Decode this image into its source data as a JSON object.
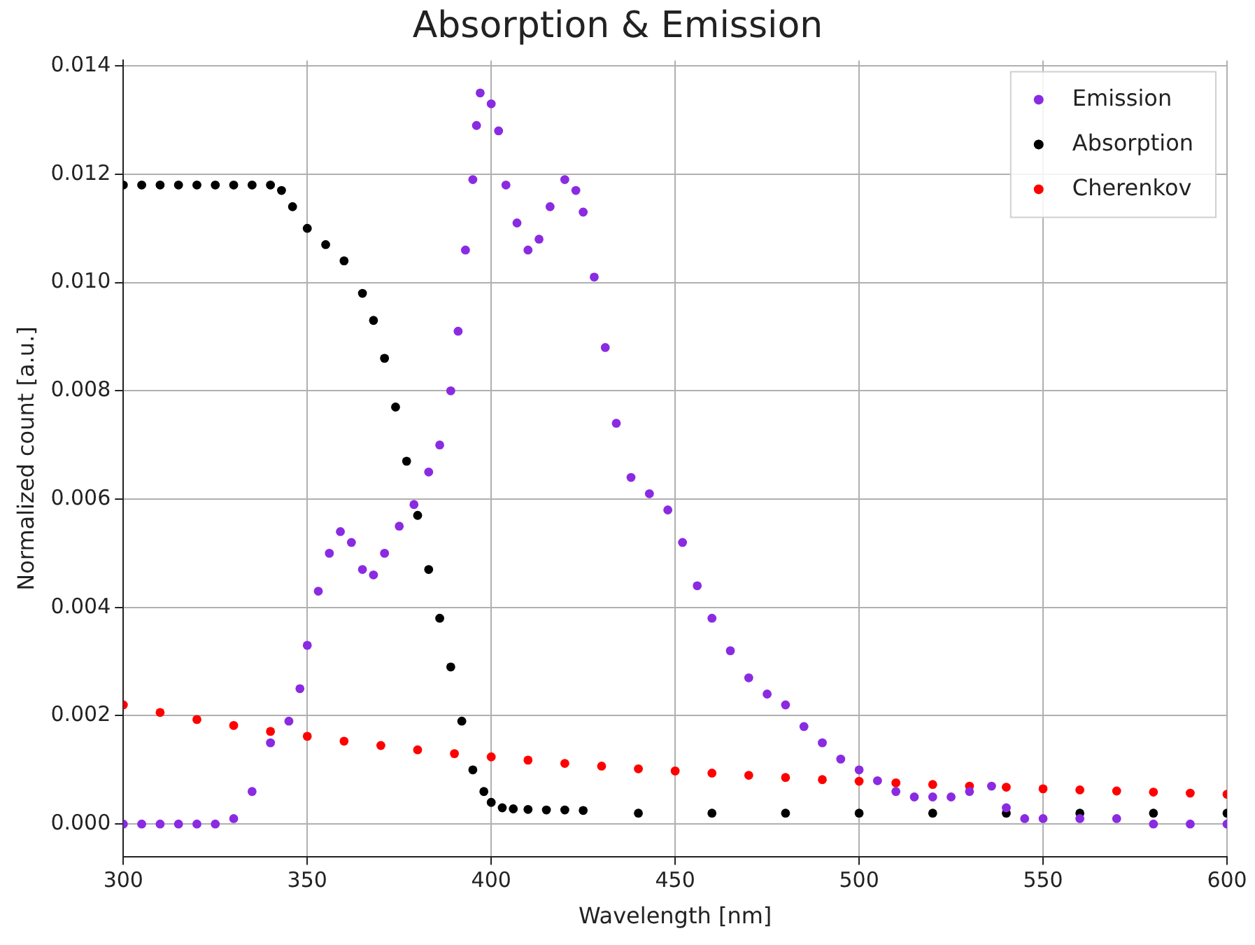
{
  "chart_data": {
    "type": "scatter",
    "title": "Absorption & Emission",
    "xlabel": "Wavelength [nm]",
    "ylabel": "Normalized count [a.u.]",
    "xlim": [
      300,
      600
    ],
    "xticks": [
      300,
      350,
      400,
      450,
      500,
      550,
      600
    ],
    "ylim": [
      -0.0006,
      0.0141
    ],
    "yticks": [
      {
        "value": 0,
        "label": "0.000"
      },
      {
        "value": 0.002,
        "label": "0.002"
      },
      {
        "value": 0.004,
        "label": "0.004"
      },
      {
        "value": 0.006,
        "label": "0.006"
      },
      {
        "value": 0.008,
        "label": "0.008"
      },
      {
        "value": 0.01,
        "label": "0.010"
      },
      {
        "value": 0.012,
        "label": "0.012"
      },
      {
        "value": 0.014,
        "label": "0.014"
      }
    ],
    "grid": true,
    "legend": "top right",
    "marker": "circle",
    "series": [
      {
        "name": "Emission",
        "color": "#8a2be2",
        "x": [
          300,
          305,
          310,
          315,
          320,
          325,
          330,
          335,
          340,
          345,
          348,
          350,
          353,
          356,
          359,
          362,
          365,
          368,
          371,
          375,
          379,
          383,
          386,
          389,
          391,
          393,
          395,
          396,
          397,
          400,
          402,
          404,
          407,
          410,
          413,
          416,
          420,
          423,
          425,
          428,
          431,
          434,
          438,
          443,
          448,
          452,
          456,
          460,
          465,
          470,
          475,
          480,
          485,
          490,
          495,
          500,
          505,
          510,
          515,
          520,
          525,
          530,
          536,
          540,
          545,
          550,
          560,
          570,
          580,
          590,
          600
        ],
        "values": [
          0,
          0,
          0,
          0,
          0,
          0,
          0.0001,
          0.0006,
          0.0015,
          0.0019,
          0.0025,
          0.0033,
          0.0043,
          0.005,
          0.0054,
          0.0052,
          0.0047,
          0.0046,
          0.005,
          0.0055,
          0.0059,
          0.0065,
          0.007,
          0.008,
          0.0091,
          0.0106,
          0.0119,
          0.0129,
          0.0135,
          0.0133,
          0.0128,
          0.0118,
          0.0111,
          0.0106,
          0.0108,
          0.0114,
          0.0119,
          0.0117,
          0.0113,
          0.0101,
          0.0088,
          0.0074,
          0.0064,
          0.0061,
          0.0058,
          0.0052,
          0.0044,
          0.0038,
          0.0032,
          0.0027,
          0.0024,
          0.0022,
          0.0018,
          0.0015,
          0.0012,
          0.001,
          0.0008,
          0.0006,
          0.0005,
          0.0005,
          0.0005,
          0.0006,
          0.0007,
          0.0003,
          0.0001,
          0.0001,
          0.0001,
          0.0001,
          0,
          0,
          0
        ]
      },
      {
        "name": "Absorption",
        "color": "#000000",
        "x": [
          300,
          305,
          310,
          315,
          320,
          325,
          330,
          335,
          340,
          343,
          346,
          350,
          355,
          360,
          365,
          368,
          371,
          374,
          377,
          380,
          383,
          386,
          389,
          392,
          395,
          398,
          400,
          403,
          406,
          410,
          415,
          420,
          425,
          440,
          460,
          480,
          500,
          520,
          540,
          560,
          580,
          600
        ],
        "values": [
          0.0118,
          0.0118,
          0.0118,
          0.0118,
          0.0118,
          0.0118,
          0.0118,
          0.0118,
          0.0118,
          0.0117,
          0.0114,
          0.011,
          0.0107,
          0.0104,
          0.0098,
          0.0093,
          0.0086,
          0.0077,
          0.0067,
          0.0057,
          0.0047,
          0.0038,
          0.0029,
          0.0019,
          0.001,
          0.0006,
          0.0004,
          0.0003,
          0.00028,
          0.00027,
          0.00026,
          0.00026,
          0.00025,
          0.0002,
          0.0002,
          0.0002,
          0.0002,
          0.0002,
          0.0002,
          0.0002,
          0.0002,
          0.0002
        ]
      },
      {
        "name": "Cherenkov",
        "color": "#ff0000",
        "x": [
          300,
          310,
          320,
          330,
          340,
          350,
          360,
          370,
          380,
          390,
          400,
          410,
          420,
          430,
          440,
          450,
          460,
          470,
          480,
          490,
          500,
          510,
          520,
          530,
          540,
          550,
          560,
          570,
          580,
          590,
          600
        ],
        "values": [
          0.0022,
          0.00206,
          0.00193,
          0.00182,
          0.00171,
          0.00162,
          0.00153,
          0.00145,
          0.00137,
          0.0013,
          0.00124,
          0.00118,
          0.00112,
          0.00107,
          0.00102,
          0.00098,
          0.00094,
          0.0009,
          0.00086,
          0.00082,
          0.00079,
          0.00076,
          0.00073,
          0.0007,
          0.00068,
          0.00065,
          0.00063,
          0.00061,
          0.00059,
          0.00057,
          0.00055
        ]
      }
    ]
  }
}
